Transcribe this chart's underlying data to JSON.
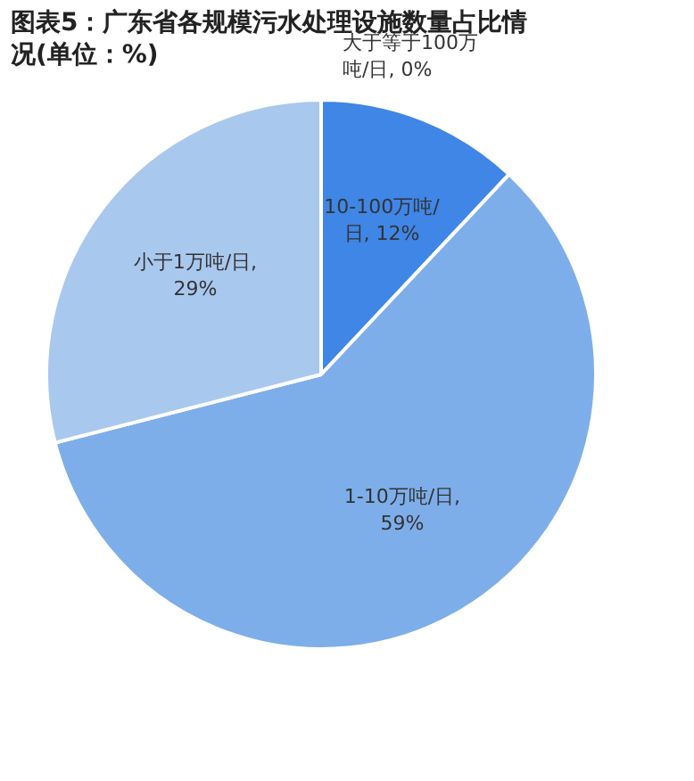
{
  "chart_data": {
    "type": "pie",
    "title": "图表5：广东省各规模污水处理设施数量占比情况(单位：%)",
    "categories": [
      "大于等于100万吨/日",
      "10-100万吨/日",
      "1-10万吨/日",
      "小于1万吨/日"
    ],
    "values": [
      0,
      12,
      59,
      29
    ],
    "colors": [
      "#2f6fd6",
      "#3f86e6",
      "#7eaeea",
      "#a9c8ee"
    ],
    "value_labels": [
      ", 0%",
      ", 12%",
      ", 59%",
      ", 29%"
    ],
    "legend": false
  }
}
